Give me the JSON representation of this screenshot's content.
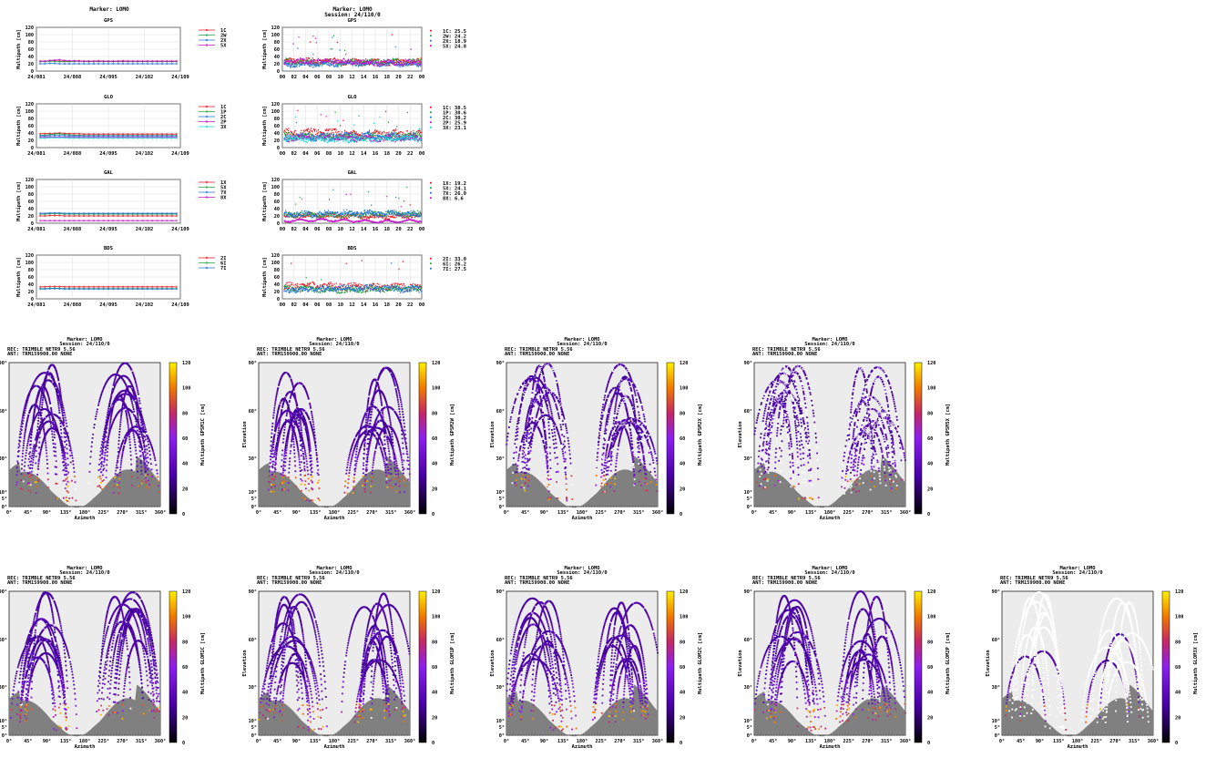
{
  "header": {
    "marker": "Marker: LOMO",
    "session": "Session: 24/110/0"
  },
  "colors": {
    "c1": "#e4151b",
    "c2": "#23a341",
    "c3": "#1f70d9",
    "c4": "#c414c8",
    "c5": "#1ad7d4",
    "sky": "#ececec",
    "mask": "#808080",
    "grid": "#d6d6d6"
  },
  "chart_data": [
    {
      "type": "line",
      "title": "GPS",
      "panel": "long-term",
      "ylabel": "Multipath [cm]",
      "ylim": [
        0,
        120
      ],
      "yticks": [
        "0",
        "20",
        "40",
        "60",
        "80",
        "100",
        "120"
      ],
      "xticks": [
        "24/081",
        "24/088",
        "24/095",
        "24/102",
        "24/109"
      ],
      "series": [
        {
          "name": "1C",
          "color": "#e4151b",
          "values": [
            27,
            27,
            28,
            28,
            27,
            27,
            27,
            28,
            28,
            27,
            27,
            27,
            28,
            27,
            27,
            27,
            27,
            28,
            27,
            27,
            27,
            27,
            27,
            27,
            27,
            27,
            27,
            27,
            27
          ]
        },
        {
          "name": "2W",
          "color": "#23a341",
          "values": [
            26,
            26,
            27,
            27,
            26,
            26,
            26,
            26,
            27,
            26,
            26,
            26,
            26,
            26,
            26,
            26,
            26,
            26,
            26,
            26,
            26,
            26,
            26,
            26,
            26,
            26,
            26,
            26,
            26
          ]
        },
        {
          "name": "2X",
          "color": "#1f70d9",
          "values": [
            20,
            20,
            21,
            21,
            20,
            20,
            20,
            20,
            20,
            20,
            20,
            20,
            20,
            20,
            20,
            20,
            20,
            20,
            20,
            20,
            20,
            20,
            20,
            20,
            20,
            20,
            20,
            20,
            20
          ]
        },
        {
          "name": "5X",
          "color": "#c414c8",
          "values": [
            27,
            27,
            29,
            30,
            31,
            29,
            28,
            28,
            27,
            27,
            27,
            27,
            27,
            27,
            27,
            27,
            27,
            27,
            27,
            27,
            27,
            27,
            27,
            27,
            27,
            27,
            27,
            27,
            27
          ]
        }
      ]
    },
    {
      "type": "scatter",
      "title": "GPS",
      "panel": "daily",
      "ylabel": "Multipath [cm]",
      "ylim": [
        0,
        120
      ],
      "yticks": [
        "0",
        "20",
        "40",
        "60",
        "80",
        "100",
        "120"
      ],
      "xticks": [
        "00",
        "02",
        "04",
        "06",
        "08",
        "10",
        "12",
        "14",
        "16",
        "18",
        "20",
        "22",
        "00"
      ],
      "series": [
        {
          "name": "1C",
          "color": "#e4151b",
          "label": "1C: 25.5",
          "level": 25.5
        },
        {
          "name": "2W",
          "color": "#23a341",
          "label": "2W: 24.2",
          "level": 24.2
        },
        {
          "name": "2X",
          "color": "#1f70d9",
          "label": "2X: 18.9",
          "level": 18.9
        },
        {
          "name": "5X",
          "color": "#c414c8",
          "label": "5X: 24.8",
          "level": 24.8
        }
      ]
    },
    {
      "type": "line",
      "title": "GLO",
      "panel": "long-term",
      "ylabel": "Multipath [cm]",
      "ylim": [
        0,
        120
      ],
      "yticks": [
        "0",
        "20",
        "40",
        "60",
        "80",
        "100",
        "120"
      ],
      "xticks": [
        "24/081",
        "24/088",
        "24/095",
        "24/102",
        "24/109"
      ],
      "series": [
        {
          "name": "1C",
          "color": "#e4151b",
          "values": [
            38,
            38,
            39,
            39,
            40,
            39,
            38,
            38,
            38,
            37,
            37,
            37,
            37,
            37,
            37,
            37,
            37,
            37,
            37,
            37,
            37,
            37,
            37,
            37,
            37,
            37,
            37,
            37,
            37
          ]
        },
        {
          "name": "1P",
          "color": "#23a341",
          "values": [
            34,
            34,
            36,
            37,
            38,
            36,
            35,
            34,
            34,
            33,
            33,
            33,
            33,
            33,
            33,
            33,
            33,
            33,
            33,
            33,
            33,
            33,
            33,
            33,
            33,
            33,
            33,
            33,
            33
          ]
        },
        {
          "name": "2C",
          "color": "#1f70d9",
          "values": [
            32,
            32,
            33,
            33,
            33,
            33,
            32,
            32,
            32,
            32,
            32,
            32,
            32,
            32,
            32,
            32,
            32,
            32,
            32,
            32,
            32,
            32,
            32,
            32,
            32,
            32,
            32,
            32,
            32
          ]
        },
        {
          "name": "2P",
          "color": "#c414c8",
          "values": [
            28,
            28,
            29,
            29,
            29,
            29,
            28,
            28,
            28,
            28,
            28,
            28,
            28,
            28,
            28,
            28,
            28,
            28,
            28,
            28,
            28,
            28,
            28,
            28,
            28,
            28,
            28,
            28,
            28
          ]
        },
        {
          "name": "3X",
          "color": "#1ad7d4",
          "values": [
            26,
            26,
            27,
            27,
            27,
            27,
            26,
            26,
            26,
            26,
            26,
            26,
            26,
            26,
            26,
            26,
            26,
            26,
            26,
            26,
            26,
            26,
            26,
            26,
            26,
            26,
            26,
            26,
            26
          ]
        }
      ]
    },
    {
      "type": "scatter",
      "title": "GLO",
      "panel": "daily",
      "ylabel": "Multipath [cm]",
      "ylim": [
        0,
        120
      ],
      "yticks": [
        "0",
        "20",
        "40",
        "60",
        "80",
        "100",
        "120"
      ],
      "xticks": [
        "00",
        "02",
        "04",
        "06",
        "08",
        "10",
        "12",
        "14",
        "16",
        "18",
        "20",
        "22",
        "00"
      ],
      "series": [
        {
          "name": "1C",
          "color": "#e4151b",
          "label": "1C: 38.5",
          "level": 38.5
        },
        {
          "name": "1P",
          "color": "#23a341",
          "label": "1P: 30.6",
          "level": 30.6
        },
        {
          "name": "2C",
          "color": "#1f70d9",
          "label": "2C: 30.2",
          "level": 30.2
        },
        {
          "name": "2P",
          "color": "#c414c8",
          "label": "2P: 25.9",
          "level": 25.9
        },
        {
          "name": "3X",
          "color": "#1ad7d4",
          "label": "3X: 23.1",
          "level": 23.1
        }
      ]
    },
    {
      "type": "line",
      "title": "GAL",
      "panel": "long-term",
      "ylabel": "Multipath [cm]",
      "ylim": [
        0,
        120
      ],
      "yticks": [
        "0",
        "20",
        "40",
        "60",
        "80",
        "100",
        "120"
      ],
      "xticks": [
        "24/081",
        "24/088",
        "24/095",
        "24/102",
        "24/109"
      ],
      "series": [
        {
          "name": "1X",
          "color": "#e4151b",
          "values": [
            20,
            20,
            21,
            21,
            21,
            20,
            20,
            20,
            20,
            20,
            20,
            20,
            20,
            20,
            20,
            20,
            20,
            20,
            20,
            20,
            20,
            20,
            20,
            20,
            20,
            20,
            20,
            20,
            20
          ]
        },
        {
          "name": "5X",
          "color": "#23a341",
          "values": [
            25,
            25,
            26,
            26,
            26,
            25,
            25,
            25,
            25,
            25,
            25,
            25,
            25,
            25,
            25,
            25,
            25,
            25,
            25,
            25,
            25,
            25,
            25,
            25,
            25,
            25,
            25,
            25,
            25
          ]
        },
        {
          "name": "7X",
          "color": "#1f70d9",
          "values": [
            27,
            27,
            28,
            28,
            28,
            27,
            27,
            27,
            27,
            27,
            27,
            27,
            27,
            27,
            27,
            27,
            27,
            27,
            27,
            27,
            27,
            27,
            27,
            27,
            27,
            27,
            27,
            27,
            27
          ]
        },
        {
          "name": "8X",
          "color": "#c414c8",
          "values": [
            7,
            7,
            7,
            7,
            7,
            7,
            7,
            7,
            7,
            7,
            7,
            7,
            7,
            7,
            7,
            7,
            7,
            7,
            7,
            7,
            7,
            7,
            7,
            7,
            7,
            7,
            7,
            7,
            7
          ]
        }
      ]
    },
    {
      "type": "scatter",
      "title": "GAL",
      "panel": "daily",
      "ylabel": "Multipath [cm]",
      "ylim": [
        0,
        120
      ],
      "yticks": [
        "0",
        "20",
        "40",
        "60",
        "80",
        "100",
        "120"
      ],
      "xticks": [
        "00",
        "02",
        "04",
        "06",
        "08",
        "10",
        "12",
        "14",
        "16",
        "18",
        "20",
        "22",
        "00"
      ],
      "series": [
        {
          "name": "1X",
          "color": "#e4151b",
          "label": "1X: 19.2",
          "level": 19.2
        },
        {
          "name": "5X",
          "color": "#23a341",
          "label": "5X: 24.1",
          "level": 24.1
        },
        {
          "name": "7X",
          "color": "#1f70d9",
          "label": "7X: 26.0",
          "level": 26.0
        },
        {
          "name": "8X",
          "color": "#c414c8",
          "label": "8X:  6.6",
          "level": 6.6
        }
      ]
    },
    {
      "type": "line",
      "title": "BDS",
      "panel": "long-term",
      "ylabel": "Multipath [cm]",
      "ylim": [
        0,
        120
      ],
      "yticks": [
        "0",
        "20",
        "40",
        "60",
        "80",
        "100",
        "120"
      ],
      "xticks": [
        "24/081",
        "24/088",
        "24/095",
        "24/102",
        "24/109"
      ],
      "series": [
        {
          "name": "2I",
          "color": "#e4151b",
          "values": [
            33,
            33,
            34,
            34,
            34,
            33,
            33,
            33,
            33,
            33,
            33,
            33,
            33,
            33,
            33,
            33,
            33,
            33,
            33,
            33,
            33,
            33,
            33,
            33,
            33,
            33,
            33,
            33,
            33
          ]
        },
        {
          "name": "6I",
          "color": "#23a341",
          "values": [
            28,
            28,
            29,
            29,
            29,
            28,
            28,
            28,
            28,
            28,
            28,
            28,
            28,
            28,
            28,
            28,
            28,
            28,
            28,
            28,
            28,
            28,
            28,
            28,
            28,
            28,
            28,
            28,
            28
          ]
        },
        {
          "name": "7I",
          "color": "#1f70d9",
          "values": [
            27,
            27,
            28,
            28,
            28,
            27,
            27,
            27,
            27,
            27,
            27,
            27,
            27,
            27,
            27,
            27,
            27,
            27,
            27,
            27,
            27,
            27,
            27,
            27,
            27,
            27,
            27,
            27,
            27
          ]
        }
      ]
    },
    {
      "type": "scatter",
      "title": "BDS",
      "panel": "daily",
      "ylabel": "Multipath [cm]",
      "ylim": [
        0,
        120
      ],
      "yticks": [
        "0",
        "20",
        "40",
        "60",
        "80",
        "100",
        "120"
      ],
      "xticks": [
        "00",
        "02",
        "04",
        "06",
        "08",
        "10",
        "12",
        "14",
        "16",
        "18",
        "20",
        "22",
        "00"
      ],
      "series": [
        {
          "name": "2I",
          "color": "#e4151b",
          "label": "2I: 33.0",
          "level": 33.0
        },
        {
          "name": "6I",
          "color": "#23a341",
          "label": "6I: 26.2",
          "level": 26.2
        },
        {
          "name": "7I",
          "color": "#1f70d9",
          "label": "7I: 27.5",
          "level": 27.5
        }
      ]
    }
  ],
  "skyplot_common": {
    "marker": "Marker: LOMO",
    "session": "Session: 24/110/0",
    "rec": "REC: TRIMBLE NETR9         5.56",
    "ant": "ANT: TRM159900.00     NONE",
    "xlabel": "Azimuth",
    "ylabel": "Elevation",
    "xticks": [
      "0°",
      "45°",
      "90°",
      "135°",
      "180°",
      "225°",
      "270°",
      "315°",
      "360°"
    ],
    "yticks": [
      "0°",
      "5°",
      "10°",
      "30°",
      "60°",
      "90°"
    ],
    "cbticks": [
      "0",
      "20",
      "40",
      "60",
      "80",
      "100",
      "120"
    ]
  },
  "skyplots": [
    {
      "cblabel": "Multipath GPSM1C [cm]",
      "coverage": "full"
    },
    {
      "cblabel": "Multipath GPSM2W [cm]",
      "coverage": "full"
    },
    {
      "cblabel": "Multipath GPSM2X [cm]",
      "coverage": "mostly"
    },
    {
      "cblabel": "Multipath GPSM5X [cm]",
      "coverage": "partial"
    },
    {
      "cblabel": "Multipath GLOM1C [cm]",
      "coverage": "full"
    },
    {
      "cblabel": "Multipath GLOM1P [cm]",
      "coverage": "full"
    },
    {
      "cblabel": "Multipath GLOM2C [cm]",
      "coverage": "full"
    },
    {
      "cblabel": "Multipath GLOM2P [cm]",
      "coverage": "full"
    },
    {
      "cblabel": "Multipath GLOM3X [cm]",
      "coverage": "sparse"
    }
  ]
}
